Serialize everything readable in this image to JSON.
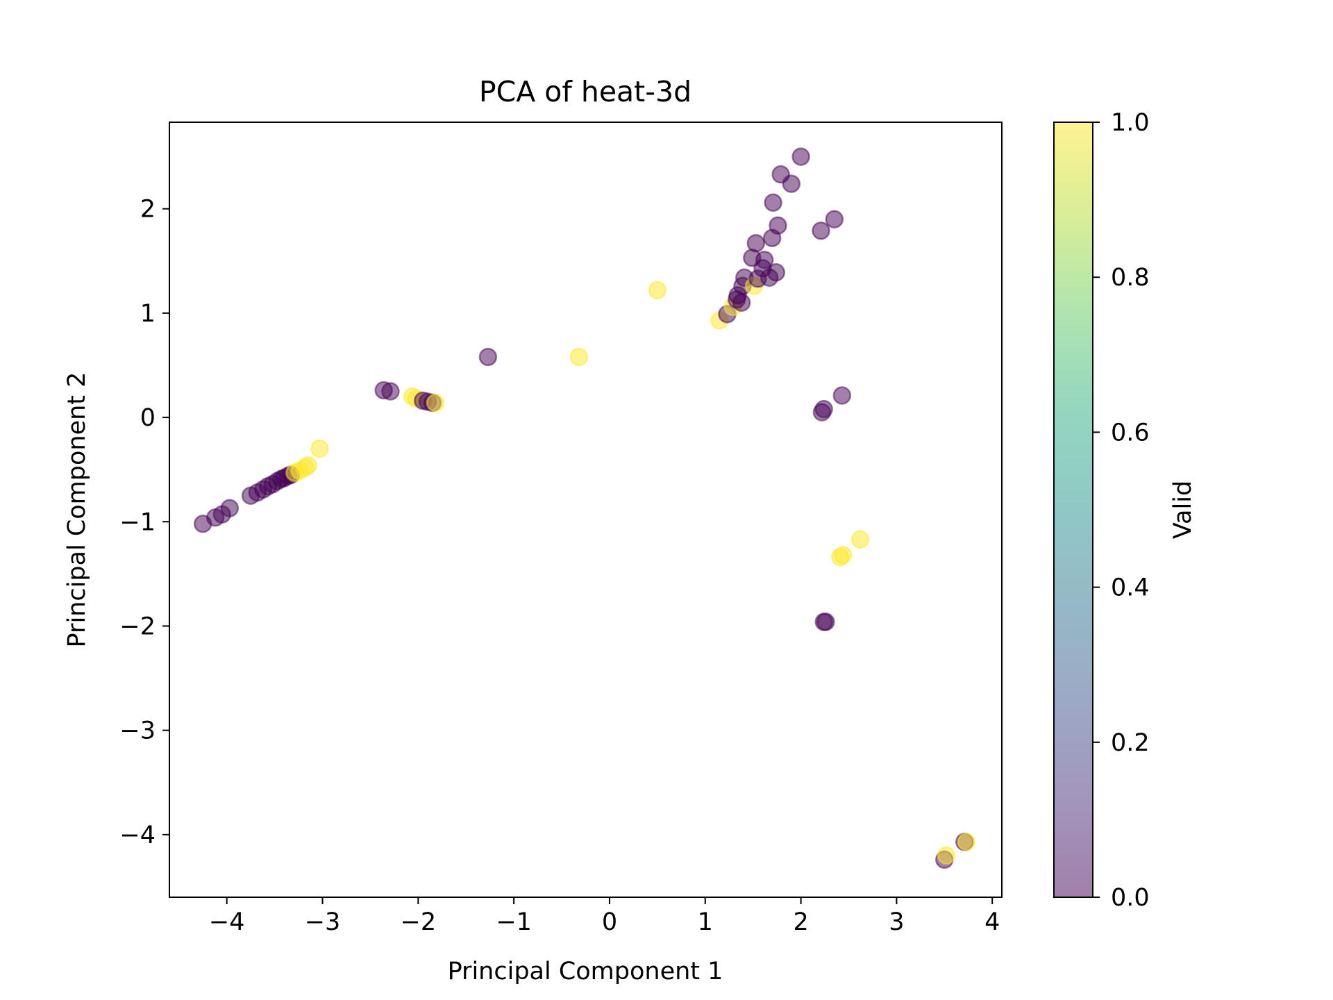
{
  "chart_data": {
    "type": "scatter",
    "title": "PCA of heat-3d",
    "xlabel": "Principal Component 1",
    "ylabel": "Principal Component 2",
    "xlim": [
      -4.6,
      4.1
    ],
    "ylim": [
      -4.6,
      2.83
    ],
    "xticks": [
      -4,
      -3,
      -2,
      -1,
      0,
      1,
      2,
      3,
      4
    ],
    "yticks": [
      -4,
      -3,
      -2,
      -1,
      0,
      1,
      2
    ],
    "grid": false,
    "colorbar": {
      "label": "Valid",
      "range": [
        0.0,
        1.0
      ],
      "ticks": [
        0.0,
        0.2,
        0.4,
        0.6,
        0.8,
        1.0
      ],
      "tick_labels": [
        "0.0",
        "0.2",
        "0.4",
        "0.6",
        "0.8",
        "1.0"
      ],
      "colormap": "viridis"
    },
    "marker_alpha": 0.5,
    "points": [
      {
        "x": -4.25,
        "y": -1.02,
        "valid": 0
      },
      {
        "x": -4.12,
        "y": -0.96,
        "valid": 0
      },
      {
        "x": -4.05,
        "y": -0.93,
        "valid": 0
      },
      {
        "x": -3.97,
        "y": -0.87,
        "valid": 0
      },
      {
        "x": -3.75,
        "y": -0.75,
        "valid": 0
      },
      {
        "x": -3.68,
        "y": -0.72,
        "valid": 0
      },
      {
        "x": -3.62,
        "y": -0.69,
        "valid": 0
      },
      {
        "x": -3.57,
        "y": -0.66,
        "valid": 0
      },
      {
        "x": -3.52,
        "y": -0.64,
        "valid": 0
      },
      {
        "x": -3.47,
        "y": -0.61,
        "valid": 0
      },
      {
        "x": -3.43,
        "y": -0.59,
        "valid": 0
      },
      {
        "x": -3.4,
        "y": -0.58,
        "valid": 0
      },
      {
        "x": -3.36,
        "y": -0.56,
        "valid": 0
      },
      {
        "x": -3.33,
        "y": -0.55,
        "valid": 0
      },
      {
        "x": -3.29,
        "y": -0.53,
        "valid": 1
      },
      {
        "x": -3.24,
        "y": -0.51,
        "valid": 1
      },
      {
        "x": -3.18,
        "y": -0.48,
        "valid": 1
      },
      {
        "x": -3.15,
        "y": -0.46,
        "valid": 1
      },
      {
        "x": -3.03,
        "y": -0.3,
        "valid": 1
      },
      {
        "x": -2.36,
        "y": 0.26,
        "valid": 0
      },
      {
        "x": -2.29,
        "y": 0.25,
        "valid": 0
      },
      {
        "x": -2.06,
        "y": 0.2,
        "valid": 1
      },
      {
        "x": -2.02,
        "y": 0.18,
        "valid": 1
      },
      {
        "x": -1.95,
        "y": 0.16,
        "valid": 0
      },
      {
        "x": -1.9,
        "y": 0.15,
        "valid": 0
      },
      {
        "x": -1.85,
        "y": 0.14,
        "valid": 0
      },
      {
        "x": -1.82,
        "y": 0.14,
        "valid": 1
      },
      {
        "x": -1.27,
        "y": 0.58,
        "valid": 0
      },
      {
        "x": -0.32,
        "y": 0.58,
        "valid": 1
      },
      {
        "x": 0.5,
        "y": 1.22,
        "valid": 1
      },
      {
        "x": 1.15,
        "y": 0.93,
        "valid": 1
      },
      {
        "x": 1.23,
        "y": 0.99,
        "valid": 0
      },
      {
        "x": 1.29,
        "y": 1.06,
        "valid": 1
      },
      {
        "x": 1.33,
        "y": 1.13,
        "valid": 0
      },
      {
        "x": 1.34,
        "y": 1.17,
        "valid": 0
      },
      {
        "x": 1.38,
        "y": 1.1,
        "valid": 0
      },
      {
        "x": 1.39,
        "y": 1.26,
        "valid": 0
      },
      {
        "x": 1.41,
        "y": 1.34,
        "valid": 0
      },
      {
        "x": 1.49,
        "y": 1.53,
        "valid": 0
      },
      {
        "x": 1.51,
        "y": 1.26,
        "valid": 1
      },
      {
        "x": 1.53,
        "y": 1.67,
        "valid": 0
      },
      {
        "x": 1.55,
        "y": 1.33,
        "valid": 0
      },
      {
        "x": 1.6,
        "y": 1.43,
        "valid": 0
      },
      {
        "x": 1.62,
        "y": 1.51,
        "valid": 0
      },
      {
        "x": 1.67,
        "y": 1.34,
        "valid": 0
      },
      {
        "x": 1.7,
        "y": 1.72,
        "valid": 0
      },
      {
        "x": 1.71,
        "y": 2.06,
        "valid": 0
      },
      {
        "x": 1.74,
        "y": 1.39,
        "valid": 0
      },
      {
        "x": 1.76,
        "y": 1.84,
        "valid": 0
      },
      {
        "x": 1.79,
        "y": 2.33,
        "valid": 0
      },
      {
        "x": 1.9,
        "y": 2.24,
        "valid": 0
      },
      {
        "x": 2.0,
        "y": 2.5,
        "valid": 0
      },
      {
        "x": 2.21,
        "y": 1.79,
        "valid": 0
      },
      {
        "x": 2.35,
        "y": 1.9,
        "valid": 0
      },
      {
        "x": 2.22,
        "y": 0.05,
        "valid": 0
      },
      {
        "x": 2.24,
        "y": 0.08,
        "valid": 0
      },
      {
        "x": 2.43,
        "y": 0.21,
        "valid": 0
      },
      {
        "x": 2.41,
        "y": -1.34,
        "valid": 1
      },
      {
        "x": 2.44,
        "y": -1.32,
        "valid": 1
      },
      {
        "x": 2.62,
        "y": -1.17,
        "valid": 1
      },
      {
        "x": 2.24,
        "y": -1.96,
        "valid": 0
      },
      {
        "x": 2.26,
        "y": -1.96,
        "valid": 0
      },
      {
        "x": 3.5,
        "y": -4.24,
        "valid": 0
      },
      {
        "x": 3.52,
        "y": -4.2,
        "valid": 1
      },
      {
        "x": 3.71,
        "y": -4.07,
        "valid": 0
      },
      {
        "x": 3.73,
        "y": -4.07,
        "valid": 1
      }
    ]
  }
}
